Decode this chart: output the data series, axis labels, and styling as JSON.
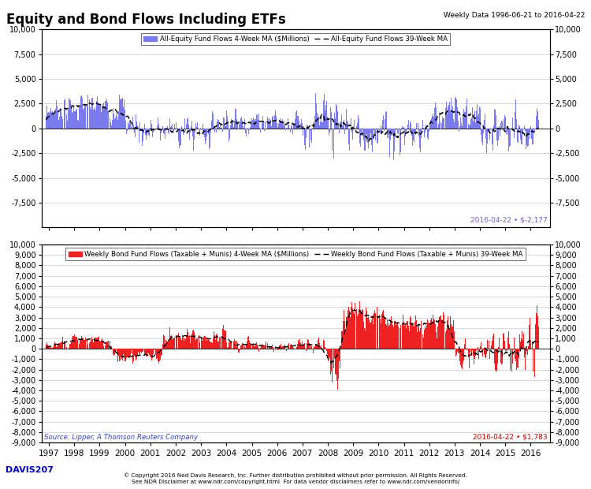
{
  "title": "Equity and Bond Flows Including ETFs",
  "subtitle": "Weekly Data 1996-06-21 to 2016-04-22",
  "top_panel": {
    "bar_color": "#7B7BEE",
    "ma_color": "black",
    "legend_bar": "All-Equity Fund Flows 4-Week MA ($Millions)",
    "legend_ma": "All-Equity Fund Flows 39-Week MA",
    "ylim": [
      -10000,
      10000
    ],
    "yticks": [
      -7500,
      -5000,
      -2500,
      0,
      2500,
      5000,
      7500,
      10000
    ],
    "last_value_label": "2016-04-22 • $-2,177",
    "last_value_color": "#6666CC"
  },
  "bottom_panel": {
    "bar_color": "#EE2222",
    "ma_color": "black",
    "legend_bar": "Weekly Bond Fund Flows (Taxable + Munis) 4-Week MA ($Millions)",
    "legend_ma": "Weekly Bond Fund Flows (Taxable + Munis) 39-Week MA",
    "ylim": [
      -9000,
      10000
    ],
    "yticks": [
      -9000,
      -8000,
      -7000,
      -6000,
      -5000,
      -4000,
      -3000,
      -2000,
      -1000,
      0,
      1000,
      2000,
      3000,
      4000,
      5000,
      6000,
      7000,
      8000,
      9000,
      10000
    ],
    "last_value_label": "2016-04-22 • $1,783",
    "last_value_color": "#CC0000",
    "source_text": "Source: Lipper, A Thomson Reuters Company"
  },
  "x_tick_years": [
    1997,
    1998,
    1999,
    2000,
    2001,
    2002,
    2003,
    2004,
    2005,
    2006,
    2007,
    2008,
    2009,
    2010,
    2011,
    2012,
    2013,
    2014,
    2015,
    2016
  ],
  "footer_left": "DAVIS207",
  "footer_left_color": "#0000BB",
  "footer_right": "© Copyright 2016 Ned Davis Research, Inc. Further distribution prohibited without prior permission. All Rights Reserved.\nSee NDR Disclaimer at www.ndr.com/copyright.html  For data vendor disclaimers refer to www.ndr.com/vendorinfo/",
  "background_color": "#FFFFFF",
  "panel_bg": "#FFFFFF",
  "grid_color": "#CCCCCC"
}
